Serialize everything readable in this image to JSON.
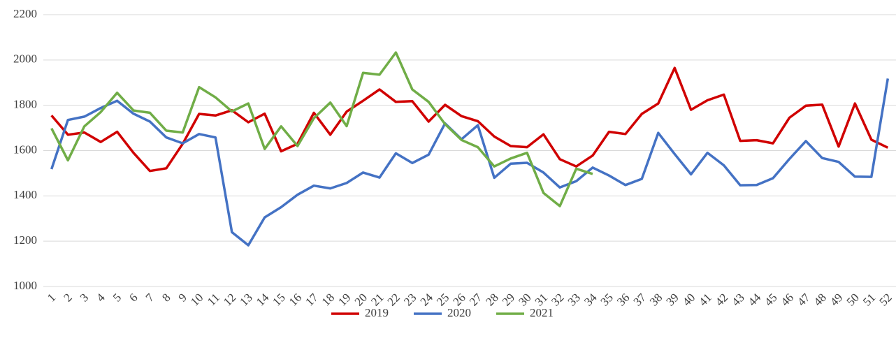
{
  "chart_data": {
    "type": "line",
    "categories": [
      "1",
      "2",
      "3",
      "4",
      "5",
      "6",
      "7",
      "8",
      "9",
      "10",
      "11",
      "12",
      "13",
      "14",
      "15",
      "16",
      "17",
      "18",
      "19",
      "20",
      "21",
      "22",
      "23",
      "24",
      "25",
      "26",
      "27",
      "28",
      "29",
      "30",
      "31",
      "32",
      "33",
      "34",
      "35",
      "36",
      "37",
      "38",
      "39",
      "40",
      "41",
      "42",
      "43",
      "44",
      "45",
      "46",
      "47",
      "48",
      "49",
      "50",
      "51",
      "52"
    ],
    "series": [
      {
        "name": "2019",
        "color": "#d00000",
        "values": [
          1755,
          1670,
          1680,
          1638,
          1683,
          1590,
          1510,
          1522,
          1630,
          1762,
          1755,
          1778,
          1725,
          1763,
          1597,
          1630,
          1767,
          1670,
          1772,
          1820,
          1870,
          1815,
          1818,
          1728,
          1802,
          1752,
          1730,
          1662,
          1620,
          1615,
          1672,
          1562,
          1530,
          1578,
          1683,
          1673,
          1762,
          1808,
          1965,
          1780,
          1822,
          1847,
          1643,
          1646,
          1632,
          1745,
          1798,
          1803,
          1618,
          1808,
          1648,
          1613
        ]
      },
      {
        "name": "2020",
        "color": "#4472c4",
        "values": [
          1518,
          1735,
          1750,
          1788,
          1820,
          1763,
          1728,
          1658,
          1632,
          1673,
          1658,
          1240,
          1182,
          1305,
          1350,
          1405,
          1445,
          1433,
          1457,
          1503,
          1481,
          1588,
          1545,
          1582,
          1720,
          1650,
          1712,
          1480,
          1542,
          1546,
          1503,
          1437,
          1465,
          1525,
          1490,
          1448,
          1475,
          1678,
          1585,
          1495,
          1590,
          1535,
          1447,
          1448,
          1478,
          1563,
          1642,
          1567,
          1550,
          1485,
          1484,
          1918
        ]
      },
      {
        "name": "2021",
        "color": "#70ad47",
        "values": [
          1698,
          1557,
          1707,
          1770,
          1855,
          1777,
          1767,
          1688,
          1680,
          1880,
          1835,
          1773,
          1808,
          1607,
          1707,
          1620,
          1743,
          1812,
          1708,
          1943,
          1935,
          2033,
          1870,
          1815,
          1717,
          1647,
          1615,
          1530,
          1565,
          1590,
          1413,
          1355,
          1520,
          1497,
          null,
          null,
          null,
          null,
          null,
          null,
          null,
          null,
          null,
          null,
          null,
          null,
          null,
          null,
          null,
          null,
          null,
          null
        ]
      }
    ],
    "ylim": [
      1000,
      2200
    ],
    "yticks": [
      1000,
      1200,
      1400,
      1600,
      1800,
      2000,
      2200
    ],
    "grid": true,
    "legend": "bottom"
  }
}
